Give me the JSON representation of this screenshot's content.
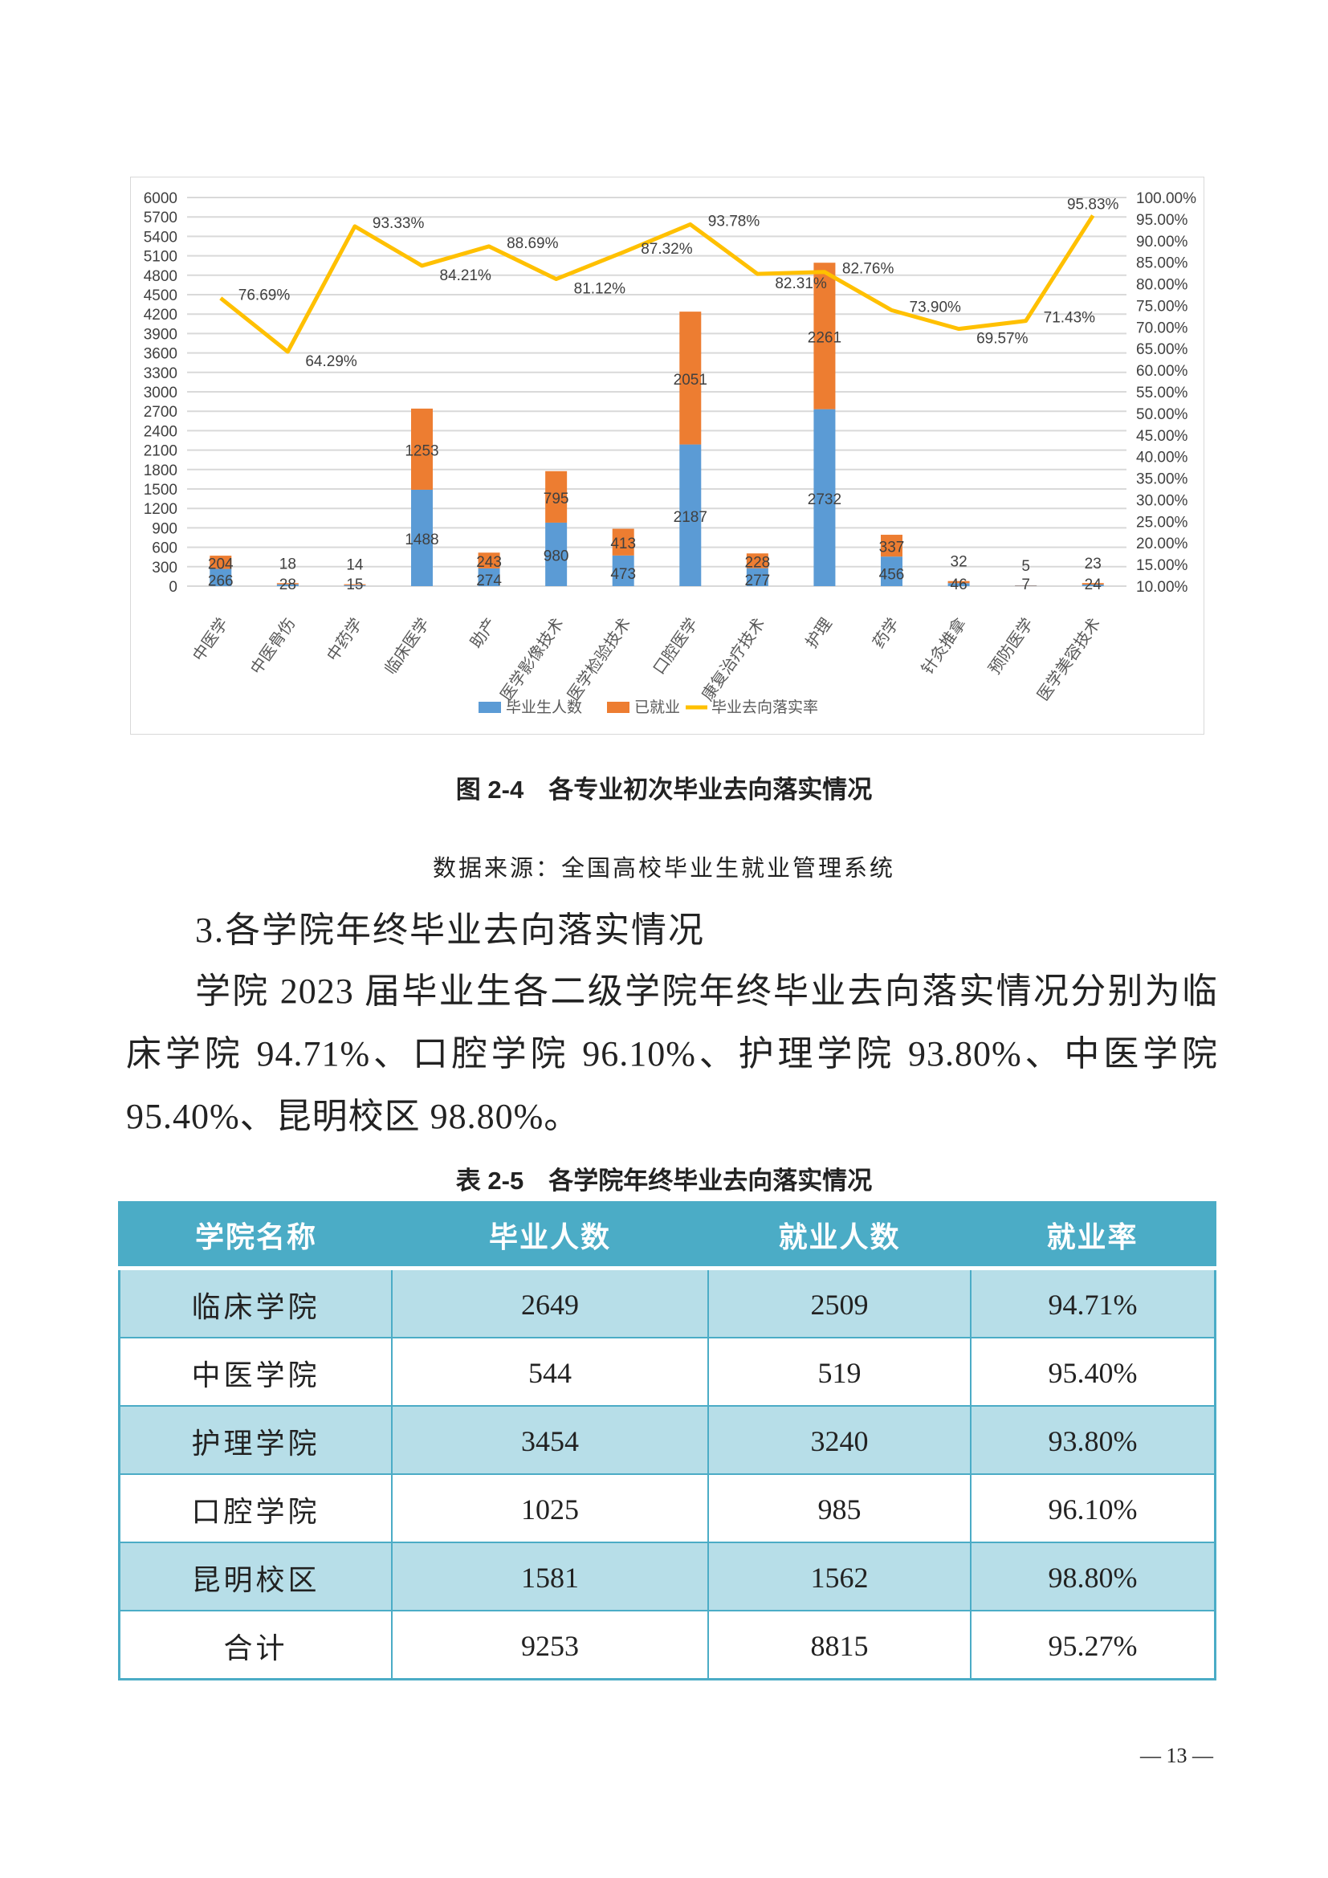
{
  "chart_data": {
    "type": "bar+line",
    "categories": [
      "中医学",
      "中医骨伤",
      "中药学",
      "临床医学",
      "助产",
      "医学影像技术",
      "医学检验技术",
      "口腔医学",
      "康复治疗技术",
      "护理",
      "药学",
      "针灸推拿",
      "预防医学",
      "医学美容技术"
    ],
    "series": [
      {
        "name": "毕业生人数",
        "type": "stacked-bar",
        "color": "#5B9BD5",
        "values": [
          266,
          28,
          15,
          1488,
          274,
          980,
          473,
          2187,
          277,
          2732,
          456,
          46,
          7,
          24
        ]
      },
      {
        "name": "已就业",
        "type": "stacked-bar",
        "color": "#ED7D31",
        "values": [
          204,
          18,
          14,
          1253,
          243,
          795,
          413,
          2051,
          228,
          2261,
          337,
          32,
          5,
          23
        ]
      },
      {
        "name": "毕业去向落实率",
        "type": "line",
        "axis": "right",
        "color": "#FFC000",
        "values": [
          76.69,
          64.29,
          93.33,
          84.21,
          88.69,
          81.12,
          87.32,
          93.78,
          82.31,
          82.76,
          73.9,
          69.57,
          71.43,
          95.83
        ],
        "labels": [
          "76.69%",
          "64.29%",
          "93.33%",
          "84.21%",
          "88.69%",
          "81.12%",
          "87.32%",
          "93.78%",
          "82.31%",
          "82.76%",
          "73.90%",
          "69.57%",
          "71.43%",
          "95.83%"
        ]
      }
    ],
    "y_left": {
      "range": [
        0,
        6000
      ],
      "ticks": [
        0,
        300,
        600,
        900,
        1200,
        1500,
        1800,
        2100,
        2400,
        2700,
        3000,
        3300,
        3600,
        3900,
        4200,
        4500,
        4800,
        5100,
        5400,
        5700,
        6000
      ]
    },
    "y_right": {
      "range": [
        10,
        100
      ],
      "ticks": [
        "10.00%",
        "15.00%",
        "20.00%",
        "25.00%",
        "30.00%",
        "35.00%",
        "40.00%",
        "45.00%",
        "50.00%",
        "55.00%",
        "60.00%",
        "65.00%",
        "70.00%",
        "75.00%",
        "80.00%",
        "85.00%",
        "90.00%",
        "95.00%",
        "100.00%"
      ]
    },
    "grid": true,
    "legend": "bottom"
  },
  "figure": {
    "caption": "图 2-4　各专业初次毕业去向落实情况",
    "source": "数据来源：全国高校毕业生就业管理系统"
  },
  "section": {
    "heading": "3.各学院年终毕业去向落实情况",
    "paragraph": "学院 2023 届毕业生各二级学院年终毕业去向落实情况分别为临床学院 94.71%、口腔学院 96.10%、护理学院 93.80%、中医学院 95.40%、昆明校区 98.80%。"
  },
  "table": {
    "title": "表 2-5　各学院年终毕业去向落实情况",
    "header_color": "#4BACC6",
    "stripe_color": "#B7DEE8",
    "columns": [
      "学院名称",
      "毕业人数",
      "就业人数",
      "就业率"
    ],
    "rows": [
      [
        "临床学院",
        "2649",
        "2509",
        "94.71%"
      ],
      [
        "中医学院",
        "544",
        "519",
        "95.40%"
      ],
      [
        "护理学院",
        "3454",
        "3240",
        "93.80%"
      ],
      [
        "口腔学院",
        "1025",
        "985",
        "96.10%"
      ],
      [
        "昆明校区",
        "1581",
        "1562",
        "98.80%"
      ],
      [
        "合计",
        "9253",
        "8815",
        "95.27%"
      ]
    ]
  },
  "page_number": "— 13 —"
}
